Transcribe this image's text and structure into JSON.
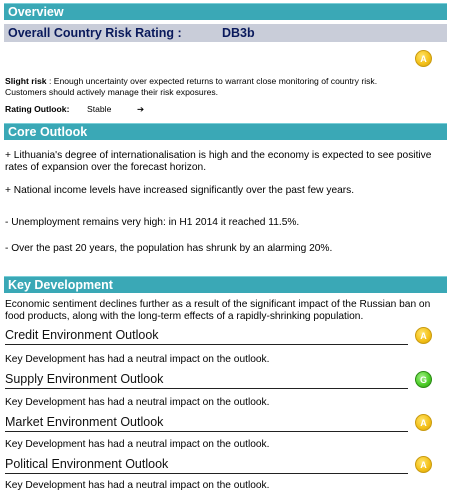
{
  "overview": {
    "header": "Overview",
    "rating_label": "Overall Country Risk Rating :",
    "rating_value": "DB3b",
    "badge": "A",
    "risk_title": "Slight risk",
    "risk_text": ": Enough uncertainty over expected returns to warrant close monitoring of country risk. Customers should actively manage their risk exposures.",
    "outlook_label": "Rating Outlook:",
    "outlook_value": "Stable",
    "outlook_arrow": "➔"
  },
  "core_outlook": {
    "header": "Core Outlook",
    "items": [
      "+ Lithuania's degree of internationalisation is high and the economy is expected to see positive rates of expansion over the forecast horizon.",
      "+ National income levels have increased significantly over the past few years.",
      "- Unemployment remains very high: in H1 2014 it reached 11.5%.",
      "- Over the past 20 years, the population has shrunk by an alarming 20%."
    ]
  },
  "key_development": {
    "header": "Key Development",
    "intro": "Economic sentiment declines further as a result of the significant impact of the Russian ban on food products, along with the long-term effects of a rapidly-shrinking population.",
    "outlooks": [
      {
        "title": "Credit Environment Outlook",
        "badge": "A",
        "badge_color": "amber",
        "text": "Key Development has had a neutral impact on the outlook."
      },
      {
        "title": "Supply Environment Outlook",
        "badge": "G",
        "badge_color": "green",
        "text": "Key Development has had a neutral impact on the outlook."
      },
      {
        "title": "Market Environment Outlook",
        "badge": "A",
        "badge_color": "amber",
        "text": "Key Development has had a neutral impact on the outlook."
      },
      {
        "title": "Political Environment Outlook",
        "badge": "A",
        "badge_color": "amber",
        "text": "Key Development has had a neutral impact on the outlook."
      }
    ]
  }
}
